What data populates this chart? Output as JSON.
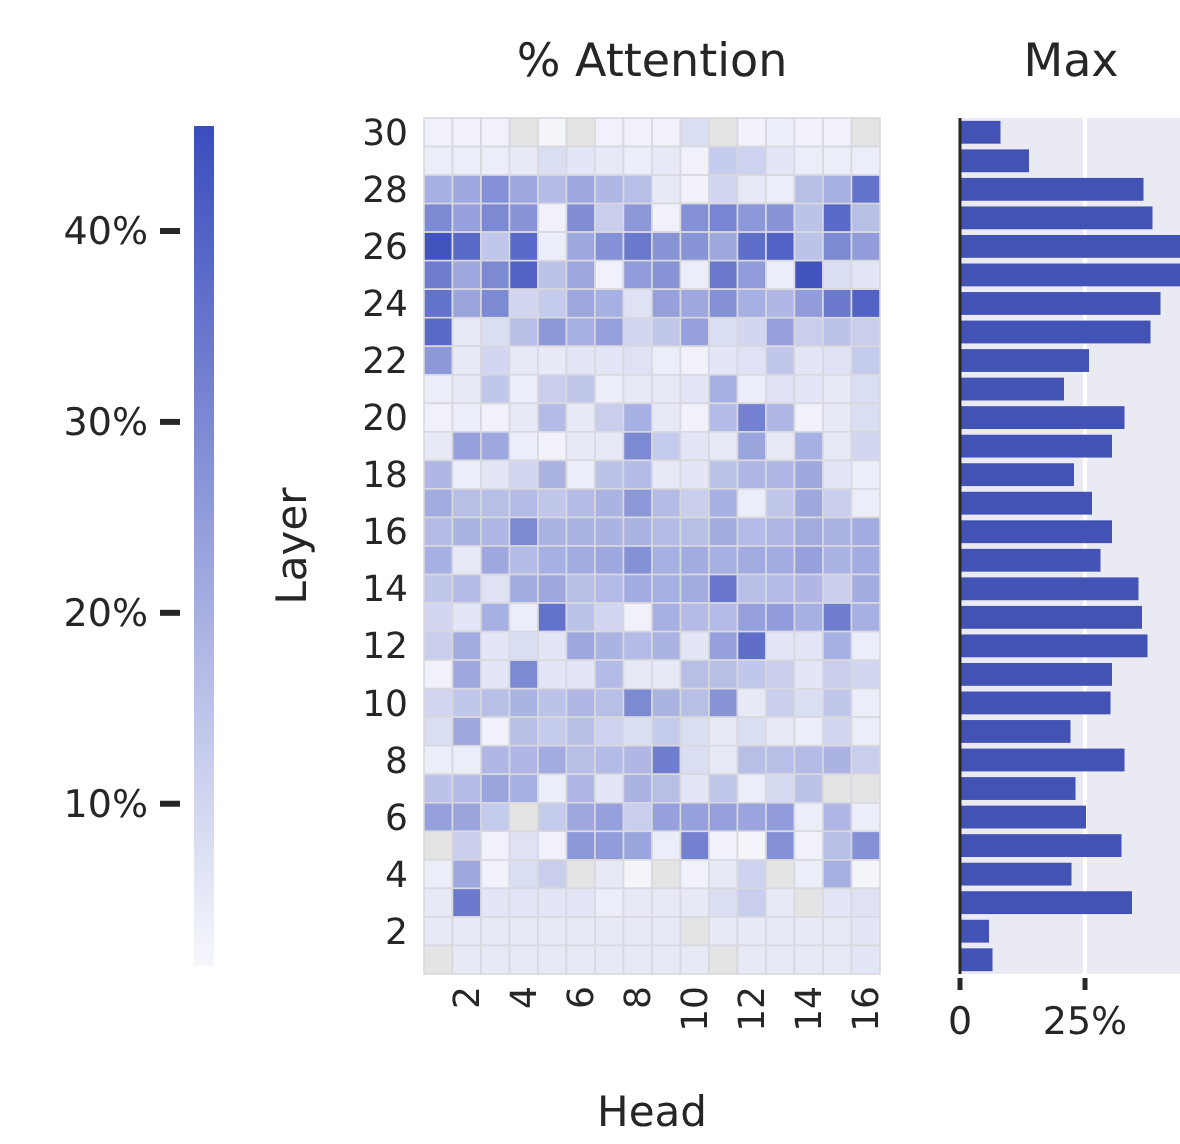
{
  "chart_data": [
    {
      "type": "heatmap",
      "title": "% Attention",
      "xlabel": "Head",
      "ylabel": "Layer",
      "categories": [
        null,
        "2",
        null,
        "4",
        null,
        "6",
        null,
        "8",
        null,
        "10",
        null,
        "12",
        null,
        "14",
        null,
        "16"
      ],
      "y_categories": [
        "30",
        null,
        "28",
        null,
        "26",
        null,
        "24",
        null,
        "22",
        null,
        "20",
        null,
        "18",
        null,
        "16",
        null,
        "14",
        null,
        "12",
        null,
        "10",
        null,
        "8",
        null,
        "6",
        null,
        "4",
        null,
        "2",
        null
      ],
      "cells": [
        [
          3,
          3,
          3,
          null,
          2,
          null,
          3,
          3,
          3,
          8,
          null,
          3,
          4,
          3,
          3,
          null
        ],
        [
          4,
          4,
          4,
          5,
          8,
          6,
          5,
          4,
          5,
          3,
          13,
          11,
          6,
          4,
          4,
          4
        ],
        [
          20,
          22,
          28,
          22,
          17,
          22,
          18,
          16,
          5,
          3,
          10,
          5,
          4,
          16,
          20,
          36
        ],
        [
          30,
          24,
          30,
          27,
          3,
          29,
          12,
          26,
          3,
          28,
          31,
          26,
          27,
          15,
          38,
          16
        ],
        [
          44,
          38,
          14,
          38,
          4,
          22,
          28,
          34,
          27,
          27,
          22,
          37,
          40,
          15,
          30,
          25
        ],
        [
          33,
          22,
          30,
          40,
          15,
          22,
          3,
          25,
          27,
          4,
          34,
          25,
          4,
          44,
          8,
          6
        ],
        [
          36,
          23,
          30,
          10,
          13,
          22,
          20,
          7,
          24,
          22,
          28,
          20,
          18,
          25,
          34,
          40
        ],
        [
          38,
          5,
          8,
          16,
          26,
          20,
          24,
          10,
          14,
          24,
          8,
          10,
          24,
          12,
          15,
          12
        ],
        [
          26,
          5,
          10,
          5,
          5,
          6,
          6,
          7,
          4,
          3,
          6,
          7,
          14,
          6,
          7,
          13
        ],
        [
          4,
          5,
          14,
          4,
          12,
          14,
          4,
          5,
          5,
          6,
          20,
          4,
          7,
          6,
          5,
          8
        ],
        [
          3,
          4,
          3,
          5,
          17,
          5,
          12,
          20,
          5,
          3,
          17,
          32,
          18,
          3,
          5,
          8
        ],
        [
          5,
          24,
          22,
          4,
          3,
          5,
          5,
          30,
          13,
          6,
          5,
          23,
          5,
          20,
          5,
          10
        ],
        [
          18,
          4,
          6,
          10,
          19,
          4,
          15,
          17,
          5,
          6,
          15,
          18,
          18,
          22,
          6,
          4
        ],
        [
          21,
          16,
          16,
          17,
          14,
          17,
          19,
          26,
          17,
          12,
          20,
          4,
          14,
          22,
          12,
          4
        ],
        [
          17,
          19,
          18,
          30,
          19,
          19,
          19,
          19,
          17,
          16,
          21,
          17,
          18,
          21,
          19,
          21
        ],
        [
          20,
          5,
          22,
          17,
          20,
          21,
          22,
          28,
          20,
          21,
          20,
          21,
          21,
          24,
          19,
          21
        ],
        [
          14,
          17,
          7,
          21,
          22,
          16,
          17,
          21,
          20,
          21,
          35,
          16,
          17,
          18,
          12,
          21
        ],
        [
          10,
          6,
          20,
          4,
          36,
          15,
          10,
          3,
          20,
          17,
          17,
          24,
          25,
          20,
          33,
          20
        ],
        [
          12,
          21,
          6,
          8,
          6,
          22,
          19,
          17,
          19,
          6,
          24,
          37,
          6,
          6,
          20,
          4
        ],
        [
          3,
          22,
          6,
          30,
          6,
          6,
          17,
          5,
          5,
          16,
          16,
          14,
          12,
          6,
          12,
          10
        ],
        [
          10,
          14,
          16,
          19,
          15,
          18,
          16,
          30,
          19,
          16,
          27,
          5,
          12,
          8,
          14,
          4
        ],
        [
          8,
          22,
          3,
          16,
          13,
          16,
          11,
          8,
          13,
          8,
          5,
          8,
          5,
          4,
          10,
          4
        ],
        [
          4,
          4,
          18,
          18,
          21,
          16,
          17,
          18,
          33,
          8,
          5,
          16,
          16,
          17,
          19,
          12
        ],
        [
          15,
          17,
          23,
          20,
          4,
          18,
          6,
          19,
          16,
          6,
          14,
          4,
          9,
          15,
          null,
          null
        ],
        [
          24,
          23,
          13,
          null,
          13,
          22,
          24,
          12,
          24,
          24,
          24,
          23,
          25,
          4,
          18,
          4
        ],
        [
          null,
          12,
          3,
          7,
          3,
          26,
          25,
          23,
          4,
          32,
          3,
          2,
          28,
          3,
          16,
          28
        ],
        [
          4,
          22,
          3,
          8,
          12,
          null,
          5,
          2,
          null,
          3,
          5,
          11,
          null,
          4,
          20,
          2
        ],
        [
          5,
          34,
          6,
          6,
          6,
          6,
          4,
          5,
          5,
          5,
          8,
          12,
          5,
          null,
          6,
          7
        ],
        [
          5,
          5,
          5,
          5,
          5,
          5,
          5,
          5,
          5,
          null,
          5,
          5,
          5,
          5,
          5,
          6
        ],
        [
          null,
          5,
          5,
          5,
          5,
          5,
          5,
          5,
          5,
          5,
          null,
          5,
          5,
          5,
          5,
          6
        ]
      ],
      "clim": [
        1.5,
        45.5
      ],
      "cticks": [
        {
          "value": 10,
          "label": "10%"
        },
        {
          "value": 20,
          "label": "20%"
        },
        {
          "value": 30,
          "label": "30%"
        },
        {
          "value": 40,
          "label": "40%"
        }
      ]
    },
    {
      "type": "bar",
      "orientation": "horizontal",
      "title": "Max",
      "color": "#4352b5",
      "grid": "x",
      "tick_labels": "x",
      "categories": [
        null,
        null,
        null,
        null,
        null,
        null,
        null,
        null,
        null,
        null,
        null,
        null,
        null,
        null,
        null,
        null,
        null,
        null,
        null,
        null,
        null,
        null,
        null,
        null,
        null,
        null,
        null,
        null,
        null,
        null
      ],
      "values": [
        8.1,
        13.8,
        36.7,
        38.5,
        44,
        44,
        40.1,
        38.1,
        25.8,
        20.8,
        32.9,
        30.4,
        22.8,
        26.4,
        30.4,
        28.1,
        35.7,
        36.4,
        37.5,
        30.4,
        30.1,
        22.1,
        32.9,
        23.1,
        25.2,
        32.3,
        22.3,
        34.4,
        5.8,
        6.5
      ],
      "xlim": [
        0,
        44
      ],
      "xticks": [
        0,
        {
          "value": 25,
          "label": "25%"
        }
      ]
    }
  ]
}
